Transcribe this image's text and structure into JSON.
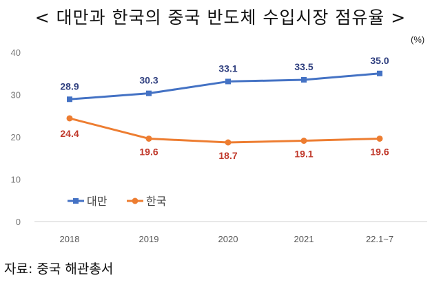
{
  "title": "< 대만과 한국의 중국 반도체 수입시장 점유율 >",
  "unit": "(%)",
  "source": "자료: 중국 해관총서",
  "chart_data": {
    "type": "line",
    "categories": [
      "2018",
      "2019",
      "2020",
      "2021",
      "22.1~7"
    ],
    "series": [
      {
        "name": "대만",
        "values": [
          28.9,
          30.3,
          33.1,
          33.5,
          35.0
        ],
        "labels": [
          "28.9",
          "30.3",
          "33.1",
          "33.5",
          "35.0"
        ],
        "color": "#4472c4",
        "label_color": "#2f3f7f",
        "marker": "square"
      },
      {
        "name": "한국",
        "values": [
          24.4,
          19.6,
          18.7,
          19.1,
          19.6
        ],
        "labels": [
          "24.4",
          "19.6",
          "18.7",
          "19.1",
          "19.6"
        ],
        "color": "#ed7d31",
        "label_color": "#c0392b",
        "marker": "circle"
      }
    ],
    "yticks": [
      "0",
      "10",
      "20",
      "30",
      "40"
    ],
    "ylim": [
      0,
      40
    ],
    "legend_position": "bottom-left",
    "grid": false
  }
}
